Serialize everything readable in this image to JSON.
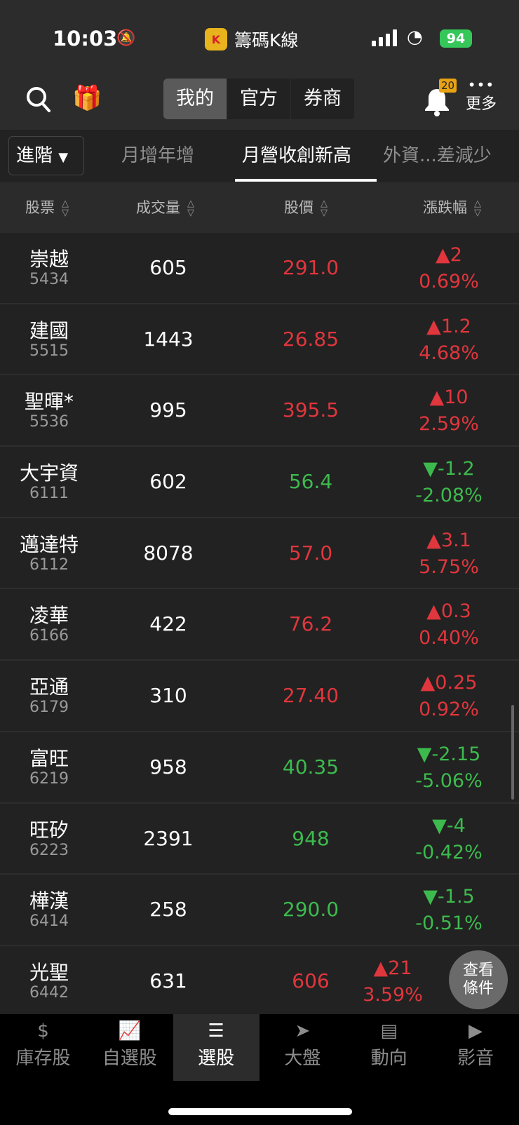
{
  "status_bar": {
    "time": "10:03",
    "app_name": "籌碼K線",
    "app_icon_letter": "K",
    "battery": "94"
  },
  "toolbar": {
    "segments": [
      {
        "label": "我的",
        "active": true
      },
      {
        "label": "官方",
        "active": false
      },
      {
        "label": "券商",
        "active": false
      }
    ],
    "notification_count": "20",
    "more_label": "更多"
  },
  "tabs": {
    "advanced_label": "進階",
    "items": [
      {
        "label": "月增年增",
        "active": false
      },
      {
        "label": "月營收創新高",
        "active": true
      },
      {
        "label": "外資...差減少",
        "active": false
      }
    ]
  },
  "columns": [
    "股票",
    "成交量",
    "股價",
    "漲跌幅"
  ],
  "colors": {
    "up": "#e0363d",
    "down": "#3dba4e"
  },
  "rows": [
    {
      "name": "崇越",
      "code": "5434",
      "volume": "605",
      "price": "291.0",
      "change": "▲2",
      "percent": "0.69%",
      "dir": "up"
    },
    {
      "name": "建國",
      "code": "5515",
      "volume": "1443",
      "price": "26.85",
      "change": "▲1.2",
      "percent": "4.68%",
      "dir": "up"
    },
    {
      "name": "聖暉*",
      "code": "5536",
      "volume": "995",
      "price": "395.5",
      "change": "▲10",
      "percent": "2.59%",
      "dir": "up"
    },
    {
      "name": "大宇資",
      "code": "6111",
      "volume": "602",
      "price": "56.4",
      "change": "▼-1.2",
      "percent": "-2.08%",
      "dir": "down"
    },
    {
      "name": "邁達特",
      "code": "6112",
      "volume": "8078",
      "price": "57.0",
      "change": "▲3.1",
      "percent": "5.75%",
      "dir": "up"
    },
    {
      "name": "凌華",
      "code": "6166",
      "volume": "422",
      "price": "76.2",
      "change": "▲0.3",
      "percent": "0.40%",
      "dir": "up"
    },
    {
      "name": "亞通",
      "code": "6179",
      "volume": "310",
      "price": "27.40",
      "change": "▲0.25",
      "percent": "0.92%",
      "dir": "up"
    },
    {
      "name": "富旺",
      "code": "6219",
      "volume": "958",
      "price": "40.35",
      "change": "▼-2.15",
      "percent": "-5.06%",
      "dir": "down"
    },
    {
      "name": "旺矽",
      "code": "6223",
      "volume": "2391",
      "price": "948",
      "change": "▼-4",
      "percent": "-0.42%",
      "dir": "down"
    },
    {
      "name": "樺漢",
      "code": "6414",
      "volume": "258",
      "price": "290.0",
      "change": "▼-1.5",
      "percent": "-0.51%",
      "dir": "down"
    },
    {
      "name": "光聖",
      "code": "6442",
      "volume": "631",
      "price": "606",
      "change": "▲21",
      "percent": "3.59%",
      "dir": "up"
    }
  ],
  "fab": {
    "line1": "查看",
    "line2": "條件"
  },
  "bottom_nav": [
    {
      "label": "庫存股",
      "icon": "money-hand-icon",
      "glyph": "$",
      "active": false
    },
    {
      "label": "自選股",
      "icon": "chart-line-icon",
      "glyph": "📈",
      "active": false
    },
    {
      "label": "選股",
      "icon": "database-icon",
      "glyph": "☰",
      "active": true
    },
    {
      "label": "大盤",
      "icon": "navigation-arrow-icon",
      "glyph": "➤",
      "active": false
    },
    {
      "label": "動向",
      "icon": "news-icon",
      "glyph": "▤",
      "active": false
    },
    {
      "label": "影音",
      "icon": "play-circle-icon",
      "glyph": "▶",
      "active": false
    }
  ]
}
